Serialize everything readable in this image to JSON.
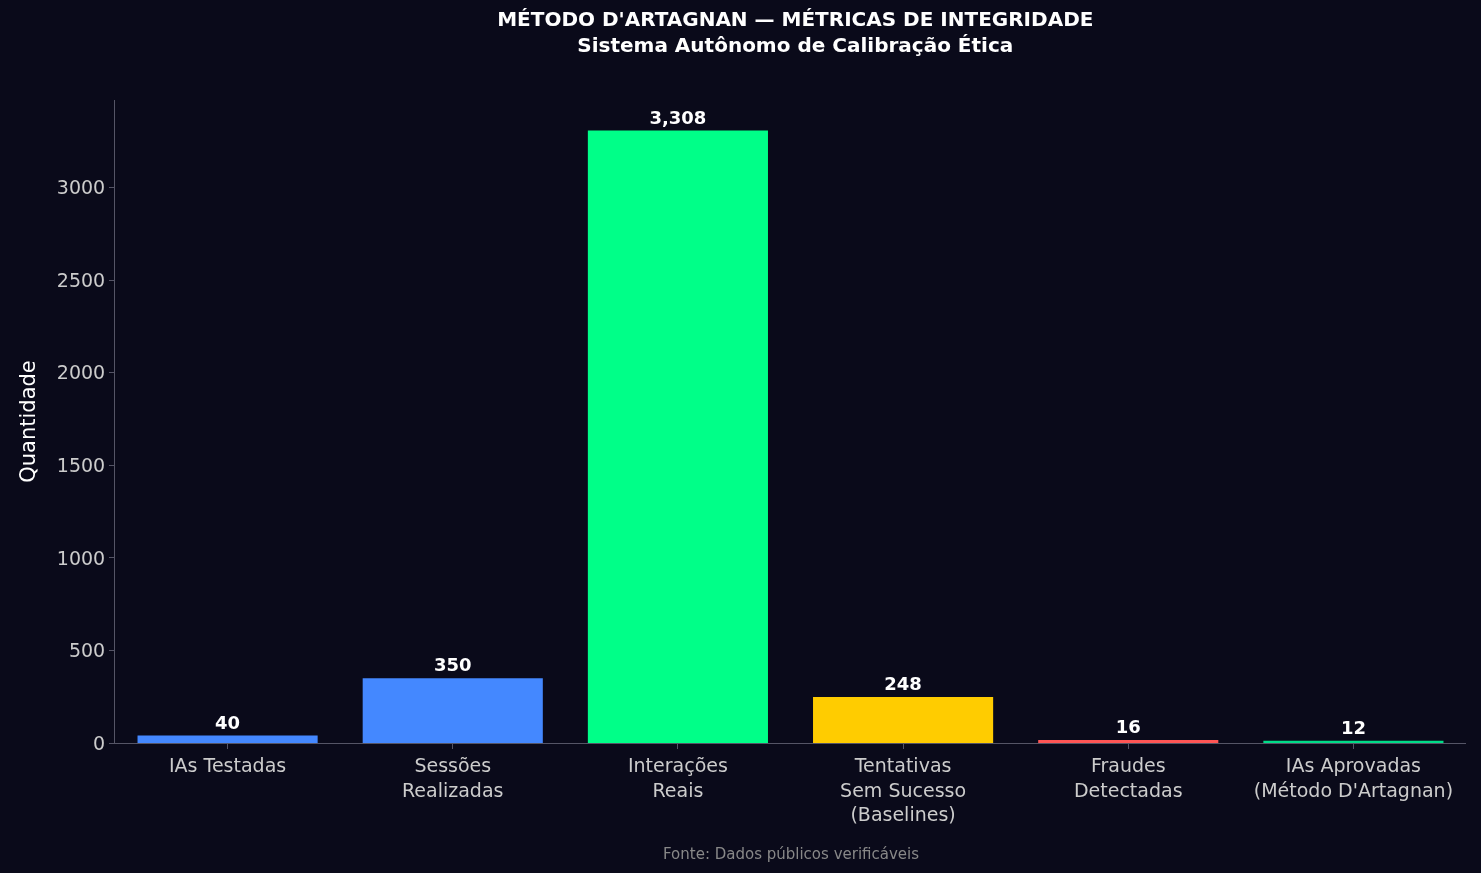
{
  "chart_data": {
    "type": "bar",
    "title": "MÉTODO D'ARTAGNAN — MÉTRICAS DE INTEGRIDADE",
    "subtitle": "Sistema Autônomo de Calibração Ética",
    "ylabel": "Quantidade",
    "categories": [
      "IAs Testadas",
      "Sessões\nRealizadas",
      "Interações\nReais",
      "Tentativas\nSem Sucesso\n(Baselines)",
      "Fraudes\nDetectadas",
      "IAs Aprovadas\n(Método D'Artagnan)"
    ],
    "values": [
      40,
      350,
      3308,
      248,
      16,
      12
    ],
    "colors": [
      "#4488ff",
      "#4488ff",
      "#00ff88",
      "#ffcc00",
      "#ff5555",
      "#00dd88"
    ],
    "value_labels": [
      "40",
      "350",
      "3,308",
      "248",
      "16",
      "12"
    ],
    "ylim": [
      0,
      3473
    ],
    "yticks": [
      0,
      500,
      1000,
      1500,
      2000,
      2500,
      3000
    ],
    "grid": false,
    "legend": false,
    "annotations": [
      "Fonte: Dados públicos verificáveis"
    ]
  }
}
